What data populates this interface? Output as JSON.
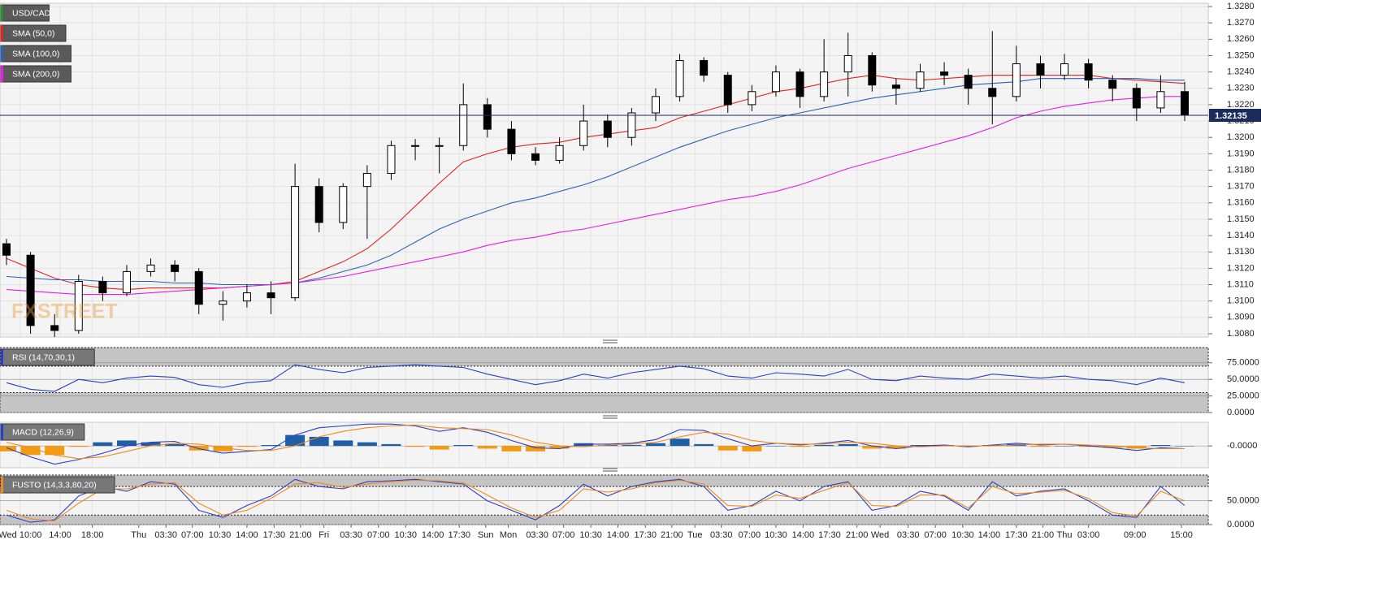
{
  "chart_data": [
    {
      "type": "candlestick",
      "title": "USD/CAD",
      "title_color": "#2e8b2e",
      "watermark": "FXSTREET",
      "up_color": "#ffffff",
      "down_color": "#000000",
      "open": [
        1.3135,
        1.3128,
        1.3085,
        1.3082,
        1.3112,
        1.3105,
        1.3118,
        1.3122,
        1.3118,
        1.3098,
        1.31,
        1.3105,
        1.3102,
        1.317,
        1.3148,
        1.317,
        1.3178,
        1.3195,
        1.3195,
        1.3195,
        1.322,
        1.3205,
        1.319,
        1.3186,
        1.3195,
        1.321,
        1.32,
        1.3215,
        1.3225,
        1.3247,
        1.3238,
        1.322,
        1.3228,
        1.324,
        1.3225,
        1.324,
        1.325,
        1.3232,
        1.323,
        1.324,
        1.3238,
        1.323,
        1.3225,
        1.3245,
        1.3238,
        1.3245,
        1.3235,
        1.323,
        1.3218,
        1.3228
      ],
      "high": [
        1.3138,
        1.313,
        1.3092,
        1.3116,
        1.3115,
        1.3122,
        1.3126,
        1.3125,
        1.312,
        1.3106,
        1.311,
        1.3112,
        1.3184,
        1.3175,
        1.3172,
        1.3183,
        1.3198,
        1.3199,
        1.32,
        1.3233,
        1.3224,
        1.321,
        1.3194,
        1.32,
        1.322,
        1.3214,
        1.3218,
        1.323,
        1.3251,
        1.3249,
        1.324,
        1.3232,
        1.3244,
        1.3242,
        1.326,
        1.3264,
        1.3252,
        1.3236,
        1.3245,
        1.3246,
        1.3242,
        1.3265,
        1.3256,
        1.325,
        1.3251,
        1.3248,
        1.3238,
        1.3233,
        1.3238,
        1.3234
      ],
      "low": [
        1.3122,
        1.308,
        1.3078,
        1.308,
        1.31,
        1.3103,
        1.3115,
        1.3112,
        1.3092,
        1.3088,
        1.3096,
        1.3092,
        1.31,
        1.3142,
        1.3144,
        1.3138,
        1.3174,
        1.3186,
        1.3178,
        1.3192,
        1.32,
        1.3186,
        1.3183,
        1.3184,
        1.3192,
        1.3194,
        1.3195,
        1.321,
        1.3222,
        1.3234,
        1.3215,
        1.3216,
        1.3225,
        1.3218,
        1.3222,
        1.3225,
        1.3228,
        1.322,
        1.3228,
        1.3232,
        1.322,
        1.3208,
        1.3222,
        1.323,
        1.3235,
        1.323,
        1.3222,
        1.321,
        1.3215,
        1.321
      ],
      "close": [
        1.3128,
        1.3085,
        1.3082,
        1.3112,
        1.3105,
        1.3118,
        1.3122,
        1.3118,
        1.3098,
        1.31,
        1.3105,
        1.3102,
        1.317,
        1.3148,
        1.317,
        1.3178,
        1.3195,
        1.3195,
        1.3195,
        1.322,
        1.3205,
        1.319,
        1.3186,
        1.3195,
        1.321,
        1.32,
        1.3215,
        1.3225,
        1.3247,
        1.3238,
        1.322,
        1.3228,
        1.324,
        1.3225,
        1.324,
        1.325,
        1.3232,
        1.323,
        1.324,
        1.3238,
        1.323,
        1.3225,
        1.3245,
        1.3238,
        1.3245,
        1.3235,
        1.323,
        1.3218,
        1.3228,
        1.3214
      ],
      "series": [
        {
          "name": "SMA (50,0)",
          "color": "#e3231c",
          "values": [
            1.3126,
            1.312,
            1.3114,
            1.311,
            1.3108,
            1.3107,
            1.3108,
            1.3108,
            1.3108,
            1.3108,
            1.3109,
            1.311,
            1.3112,
            1.3118,
            1.3124,
            1.3132,
            1.3144,
            1.3158,
            1.3172,
            1.3185,
            1.319,
            1.3194,
            1.3196,
            1.3197,
            1.32,
            1.3202,
            1.3204,
            1.3206,
            1.3212,
            1.3216,
            1.322,
            1.3224,
            1.3228,
            1.323,
            1.3233,
            1.3236,
            1.3238,
            1.3236,
            1.3235,
            1.3236,
            1.3237,
            1.3238,
            1.3238,
            1.3238,
            1.3238,
            1.3238,
            1.3236,
            1.3235,
            1.3234,
            1.3233
          ]
        },
        {
          "name": "SMA (100,0)",
          "color": "#2a63b5",
          "values": [
            1.3115,
            1.3114,
            1.3113,
            1.3113,
            1.3112,
            1.3112,
            1.3112,
            1.3111,
            1.3111,
            1.311,
            1.311,
            1.311,
            1.3111,
            1.3114,
            1.3118,
            1.3122,
            1.3128,
            1.3136,
            1.3144,
            1.315,
            1.3155,
            1.316,
            1.3163,
            1.3167,
            1.3171,
            1.3176,
            1.3182,
            1.3188,
            1.3194,
            1.3199,
            1.3204,
            1.3208,
            1.3212,
            1.3215,
            1.3218,
            1.3221,
            1.3224,
            1.3226,
            1.3228,
            1.323,
            1.3232,
            1.3233,
            1.3234,
            1.3236,
            1.3236,
            1.3236,
            1.3236,
            1.3236,
            1.3235,
            1.3235
          ]
        },
        {
          "name": "SMA (200,0)",
          "color": "#e61ee6",
          "values": [
            1.3107,
            1.3106,
            1.3105,
            1.3104,
            1.3104,
            1.3104,
            1.3105,
            1.3106,
            1.3107,
            1.3108,
            1.3109,
            1.311,
            1.3111,
            1.3113,
            1.3115,
            1.3118,
            1.3121,
            1.3124,
            1.3127,
            1.313,
            1.3134,
            1.3137,
            1.3139,
            1.3142,
            1.3144,
            1.3147,
            1.315,
            1.3153,
            1.3156,
            1.3159,
            1.3162,
            1.3164,
            1.3167,
            1.3171,
            1.3176,
            1.3181,
            1.3185,
            1.3189,
            1.3193,
            1.3197,
            1.3201,
            1.3206,
            1.3212,
            1.3216,
            1.3219,
            1.3221,
            1.3223,
            1.3224,
            1.3225,
            1.3225
          ]
        }
      ],
      "last_price": 1.32135,
      "last_price_color": "#1b2b5c",
      "ylim": [
        1.3078,
        1.3282
      ],
      "yticks": [
        {
          "value": 1.308,
          "label": "1.3080"
        },
        {
          "value": 1.309,
          "label": "1.3090"
        },
        {
          "value": 1.31,
          "label": "1.3100"
        },
        {
          "value": 1.311,
          "label": "1.3110"
        },
        {
          "value": 1.312,
          "label": "1.3120"
        },
        {
          "value": 1.313,
          "label": "1.3130"
        },
        {
          "value": 1.314,
          "label": "1.3140"
        },
        {
          "value": 1.315,
          "label": "1.3150"
        },
        {
          "value": 1.316,
          "label": "1.3160"
        },
        {
          "value": 1.317,
          "label": "1.3170"
        },
        {
          "value": 1.318,
          "label": "1.3180"
        },
        {
          "value": 1.319,
          "label": "1.3190"
        },
        {
          "value": 1.32,
          "label": "1.3200"
        },
        {
          "value": 1.321,
          "label": "1.3210"
        },
        {
          "value": 1.322,
          "label": "1.3220"
        },
        {
          "value": 1.323,
          "label": "1.3230"
        },
        {
          "value": 1.324,
          "label": "1.3240"
        },
        {
          "value": 1.325,
          "label": "1.3250"
        },
        {
          "value": 1.326,
          "label": "1.3260"
        },
        {
          "value": 1.327,
          "label": "1.3270"
        },
        {
          "value": 1.328,
          "label": "1.3280"
        }
      ],
      "xticks": [
        {
          "value": 0.57,
          "label": "Wed 10:00"
        },
        {
          "value": 2.23,
          "label": "14:00"
        },
        {
          "value": 3.57,
          "label": "18:00"
        },
        {
          "value": 5.5,
          "label": "Thu"
        },
        {
          "value": 6.63,
          "label": "03:30"
        },
        {
          "value": 7.73,
          "label": "07:00"
        },
        {
          "value": 8.87,
          "label": "10:30"
        },
        {
          "value": 10,
          "label": "14:00"
        },
        {
          "value": 11.13,
          "label": "17:30"
        },
        {
          "value": 12.23,
          "label": "21:00"
        },
        {
          "value": 13.2,
          "label": "Fri"
        },
        {
          "value": 14.33,
          "label": "03:30"
        },
        {
          "value": 15.47,
          "label": "07:00"
        },
        {
          "value": 16.6,
          "label": "10:30"
        },
        {
          "value": 17.73,
          "label": "14:00"
        },
        {
          "value": 18.83,
          "label": "17:30"
        },
        {
          "value": 19.93,
          "label": "Sun"
        },
        {
          "value": 20.87,
          "label": "Mon"
        },
        {
          "value": 22.07,
          "label": "03:30"
        },
        {
          "value": 23.17,
          "label": "07:00"
        },
        {
          "value": 24.3,
          "label": "10:30"
        },
        {
          "value": 25.43,
          "label": "14:00"
        },
        {
          "value": 26.57,
          "label": "17:30"
        },
        {
          "value": 27.67,
          "label": "21:00"
        },
        {
          "value": 28.63,
          "label": "Tue"
        },
        {
          "value": 29.73,
          "label": "03:30"
        },
        {
          "value": 30.9,
          "label": "07:00"
        },
        {
          "value": 32,
          "label": "10:30"
        },
        {
          "value": 33.13,
          "label": "14:00"
        },
        {
          "value": 34.23,
          "label": "17:30"
        },
        {
          "value": 35.37,
          "label": "21:00"
        },
        {
          "value": 36.33,
          "label": "Wed"
        },
        {
          "value": 37.5,
          "label": "03:30"
        },
        {
          "value": 38.63,
          "label": "07:00"
        },
        {
          "value": 39.77,
          "label": "10:30"
        },
        {
          "value": 40.87,
          "label": "14:00"
        },
        {
          "value": 42,
          "label": "17:30"
        },
        {
          "value": 43.1,
          "label": "21:00"
        },
        {
          "value": 44,
          "label": "Thu"
        },
        {
          "value": 45,
          "label": "03:00"
        },
        {
          "value": 46.93,
          "label": "09:00"
        },
        {
          "value": 48.87,
          "label": "15:00"
        }
      ],
      "grid": true
    },
    {
      "type": "line",
      "title": "RSI (14,70,30,1)",
      "title_color": "#2a3fc4",
      "overbought": 70,
      "oversold": 30,
      "series": [
        {
          "color": "#2a3fc4",
          "values": [
            45,
            35,
            32,
            50,
            45,
            52,
            55,
            53,
            42,
            38,
            45,
            48,
            72,
            65,
            60,
            68,
            70,
            72,
            70,
            68,
            58,
            50,
            42,
            48,
            58,
            52,
            60,
            65,
            70,
            66,
            55,
            52,
            60,
            58,
            55,
            65,
            50,
            48,
            55,
            52,
            50,
            58,
            55,
            52,
            55,
            50,
            48,
            42,
            52,
            45
          ]
        }
      ],
      "ylim": [
        0,
        98
      ],
      "yticks": [
        {
          "value": 0,
          "label": "0.0000"
        },
        {
          "value": 25,
          "label": "25.0000"
        },
        {
          "value": 50,
          "label": "50.0000"
        },
        {
          "value": 75,
          "label": "75.0000"
        }
      ]
    },
    {
      "type": "macd",
      "title": "MACD (12,26,9)",
      "title_color": "#2a3fc4",
      "macd": {
        "color": "#2a3fc4",
        "values": [
          -0.0002,
          -0.0012,
          -0.002,
          -0.0015,
          -0.0008,
          0,
          0.0004,
          0.0005,
          -0.0003,
          -0.0008,
          -0.0006,
          -0.0004,
          0.0012,
          0.002,
          0.0022,
          0.0024,
          0.0024,
          0.0022,
          0.0016,
          0.002,
          0.0015,
          0.0006,
          -0.0002,
          -0.0003,
          0.0002,
          0.0002,
          0.0003,
          0.0007,
          0.0018,
          0.0017,
          0.0008,
          0,
          0.0003,
          0.0001,
          0.0003,
          0.0006,
          0,
          -0.0003,
          0,
          0.0001,
          -0.0001,
          0.0001,
          0.0003,
          0.0001,
          0.0002,
          0,
          -0.0002,
          -0.0005,
          -0.0002,
          -0.0003
        ]
      },
      "signal": {
        "color": "#f08a1c",
        "values": [
          0.0004,
          -0.0002,
          -0.001,
          -0.0014,
          -0.0012,
          -0.0006,
          0,
          0.0003,
          0.0002,
          -0.0002,
          -0.0005,
          -0.0005,
          0,
          0.001,
          0.0016,
          0.002,
          0.0022,
          0.0023,
          0.002,
          0.0019,
          0.0018,
          0.0012,
          0.0004,
          0,
          -0.0001,
          0.0001,
          0.0002,
          0.0004,
          0.001,
          0.0015,
          0.0013,
          0.0006,
          0.0003,
          0.0002,
          0.0002,
          0.0004,
          0.0003,
          0,
          -0.0001,
          0,
          0,
          0,
          0.0001,
          0.0002,
          0.0002,
          0.0001,
          0,
          -0.0002,
          -0.0003,
          -0.0003
        ]
      },
      "histogram": {
        "up_color": "#1f5fa8",
        "down_color": "#f39c12",
        "values": [
          -0.0006,
          -0.001,
          -0.001,
          -0.0001,
          0.0004,
          0.0006,
          0.0004,
          0.0002,
          -0.0005,
          -0.0006,
          -0.0001,
          0.0001,
          0.0012,
          0.001,
          0.0006,
          0.0004,
          0.0002,
          -0.0001,
          -0.0004,
          0.0001,
          -0.0003,
          -0.0006,
          -0.0006,
          -0.0003,
          0.0003,
          0.0001,
          0.0001,
          0.0003,
          0.0008,
          0.0002,
          -0.0005,
          -0.0006,
          0,
          -0.0001,
          0.0001,
          0.0002,
          -0.0003,
          -0.0003,
          0.0001,
          0.0001,
          -0.0001,
          0.0001,
          0.0002,
          -0.0001,
          0,
          -0.0001,
          -0.0002,
          -0.0003,
          0.0001,
          0
        ]
      },
      "ylim": [
        -0.0024,
        0.0026
      ],
      "yticks": [
        {
          "value": 0,
          "label": "-0.0000"
        }
      ]
    },
    {
      "type": "line",
      "title": "FUSTO (14,3,3,80,20)",
      "title_color": "#f08a1c",
      "overbought": 80,
      "oversold": 20,
      "series": [
        {
          "color": "#2a3fc4",
          "values": [
            20,
            5,
            10,
            60,
            80,
            70,
            90,
            85,
            30,
            15,
            40,
            60,
            95,
            80,
            75,
            90,
            92,
            95,
            90,
            85,
            50,
            30,
            10,
            40,
            85,
            60,
            80,
            90,
            95,
            80,
            30,
            40,
            70,
            50,
            80,
            90,
            30,
            40,
            70,
            60,
            30,
            90,
            60,
            70,
            75,
            50,
            20,
            15,
            80,
            40
          ]
        },
        {
          "color": "#f08a1c",
          "values": [
            30,
            12,
            8,
            45,
            75,
            75,
            85,
            88,
            45,
            20,
            30,
            55,
            85,
            88,
            78,
            85,
            90,
            93,
            92,
            88,
            62,
            35,
            15,
            30,
            75,
            68,
            75,
            88,
            93,
            85,
            40,
            38,
            62,
            55,
            72,
            88,
            40,
            38,
            62,
            62,
            35,
            80,
            65,
            68,
            72,
            55,
            25,
            18,
            70,
            50
          ]
        }
      ],
      "ylim": [
        0,
        104
      ],
      "yticks": [
        {
          "value": 0,
          "label": "0.0000"
        },
        {
          "value": 50,
          "label": "50.0000"
        }
      ]
    }
  ]
}
